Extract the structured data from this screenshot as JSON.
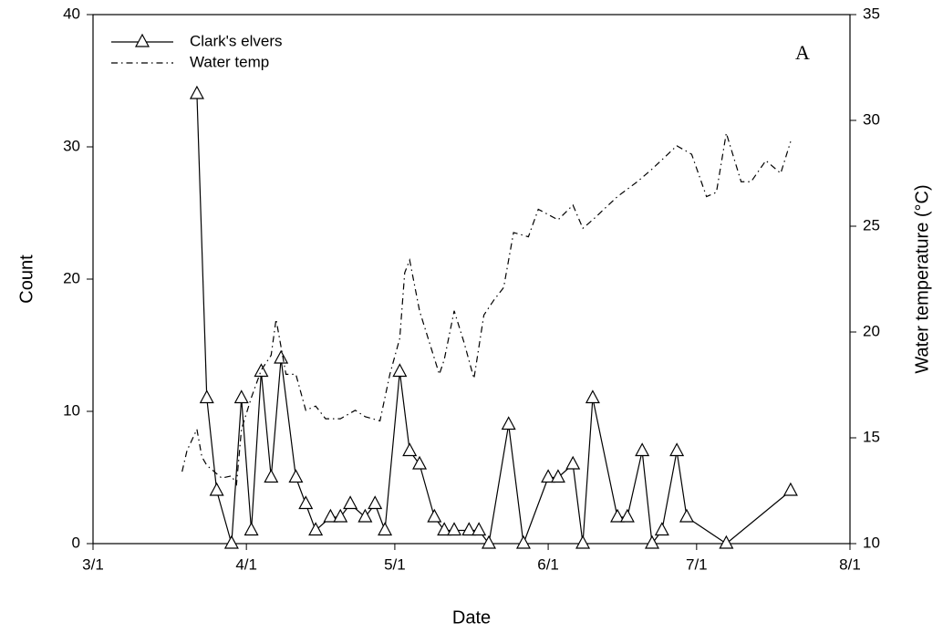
{
  "chart_data": {
    "type": "line",
    "x_label": "Date",
    "y_label": "Count",
    "y2_label": "Water temperature (°C)",
    "annotation": "A",
    "xlim": [
      "3/1",
      "8/1"
    ],
    "xticks": [
      "3/1",
      "4/1",
      "5/1",
      "6/1",
      "7/1",
      "8/1"
    ],
    "ylim": [
      0,
      40
    ],
    "yticks": [
      0,
      10,
      20,
      30,
      40
    ],
    "y2lim": [
      10,
      35
    ],
    "y2ticks": [
      10,
      15,
      20,
      25,
      30,
      35
    ],
    "legend": "upper left",
    "series": [
      {
        "name": "Clark's elvers",
        "color": "#000000",
        "line_style": "solid",
        "marker": "triangle",
        "x": [
          "3/22",
          "3/24",
          "3/26",
          "3/29",
          "3/31",
          "4/2",
          "4/4",
          "4/6",
          "4/8",
          "4/11",
          "4/13",
          "4/15",
          "4/18",
          "4/20",
          "4/22",
          "4/25",
          "4/27",
          "4/29",
          "5/2",
          "5/4",
          "5/6",
          "5/9",
          "5/11",
          "5/13",
          "5/16",
          "5/18",
          "5/20",
          "5/24",
          "5/27",
          "6/1",
          "6/3",
          "6/6",
          "6/8",
          "6/10",
          "6/15",
          "6/17",
          "6/20",
          "6/22",
          "6/24",
          "6/27",
          "6/29",
          "7/7",
          "7/20"
        ],
        "values": [
          34,
          11,
          4,
          0,
          11,
          1,
          13,
          5,
          14,
          5,
          3,
          1,
          2,
          2,
          3,
          2,
          3,
          1,
          13,
          7,
          6,
          2,
          1,
          1,
          1,
          1,
          0,
          9,
          0,
          5,
          5,
          6,
          0,
          11,
          2,
          2,
          7,
          0,
          1,
          7,
          2,
          0,
          4
        ]
      },
      {
        "name": "Water temp",
        "color": "#000000",
        "line_style": "dashdot",
        "axis": "y2",
        "x": [
          "3/19",
          "3/20",
          "3/22",
          "3/23",
          "3/24",
          "3/26",
          "3/27",
          "3/29",
          "3/30",
          "3/31",
          "4/2",
          "4/4",
          "4/6",
          "4/7",
          "4/9",
          "4/11",
          "4/13",
          "4/15",
          "4/17",
          "4/20",
          "4/23",
          "4/25",
          "4/28",
          "4/30",
          "5/2",
          "5/3",
          "5/4",
          "5/6",
          "5/8",
          "5/10",
          "5/11",
          "5/13",
          "5/15",
          "5/17",
          "5/19",
          "5/21",
          "5/23",
          "5/25",
          "5/28",
          "5/30",
          "6/3",
          "6/6",
          "6/8",
          "6/10",
          "6/15",
          "6/19",
          "6/22",
          "6/27",
          "6/30",
          "7/3",
          "7/5",
          "7/7",
          "7/10",
          "7/12",
          "7/15",
          "7/18",
          "7/20"
        ],
        "values": [
          13.4,
          14.4,
          15.4,
          14.1,
          13.7,
          13.3,
          13.1,
          13.2,
          12.8,
          15.4,
          16.9,
          18.2,
          18.9,
          20.6,
          18.0,
          18.0,
          16.3,
          16.5,
          15.9,
          15.9,
          16.3,
          16.0,
          15.8,
          18.0,
          19.7,
          22.8,
          23.4,
          21.0,
          19.5,
          18.0,
          18.7,
          21.0,
          19.5,
          17.8,
          20.8,
          21.5,
          22.1,
          24.7,
          24.5,
          25.8,
          25.3,
          26.0,
          24.9,
          25.3,
          26.4,
          27.1,
          27.7,
          28.8,
          28.4,
          26.4,
          26.6,
          29.4,
          27.1,
          27.1,
          28.1,
          27.5,
          29.0
        ]
      }
    ]
  }
}
